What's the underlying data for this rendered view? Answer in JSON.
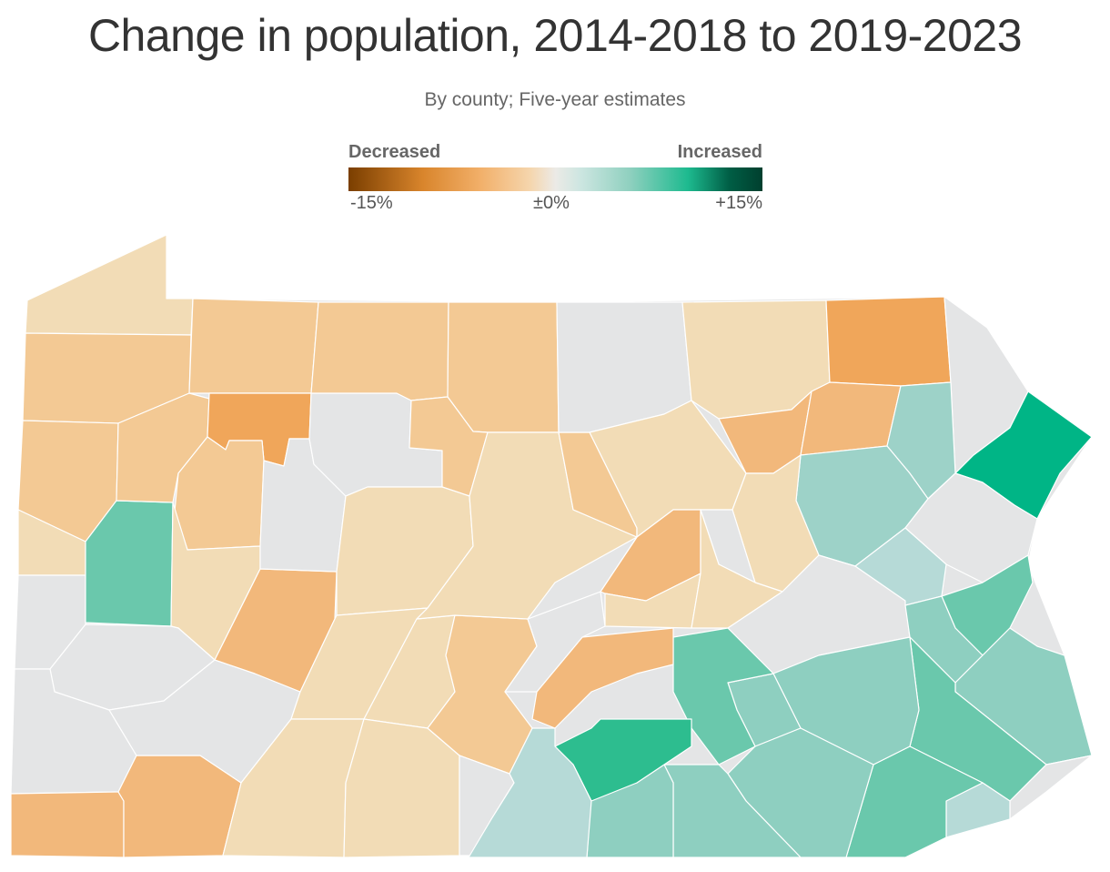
{
  "title": "Change in population, 2014-2018 to 2019-2023",
  "subtitle": "By county; Five-year estimates",
  "legend": {
    "left_label": "Decreased",
    "right_label": "Increased",
    "ticks": [
      "-15%",
      "±0%",
      "+15%"
    ],
    "scale_colors": [
      "#7a3e00",
      "#d9852c",
      "#f2b06a",
      "#f5d6ae",
      "#eceae6",
      "#cde6e1",
      "#8fd0bf",
      "#1dba8f",
      "#003f2e"
    ]
  },
  "colors": {
    "neutral": "#e4e5e6",
    "pale_orange": "#f2dcb6",
    "light_orange": "#f3c994",
    "mid_orange": "#f2b87b",
    "strong_orange": "#f0a65a",
    "pale_green": "#b6dad7",
    "light_green": "#9dd2c8",
    "mid_green": "#8ecfc0",
    "strong_green": "#6ac8ac",
    "deep_green": "#2dbd8f",
    "darkest_green": "#00b586"
  }
}
